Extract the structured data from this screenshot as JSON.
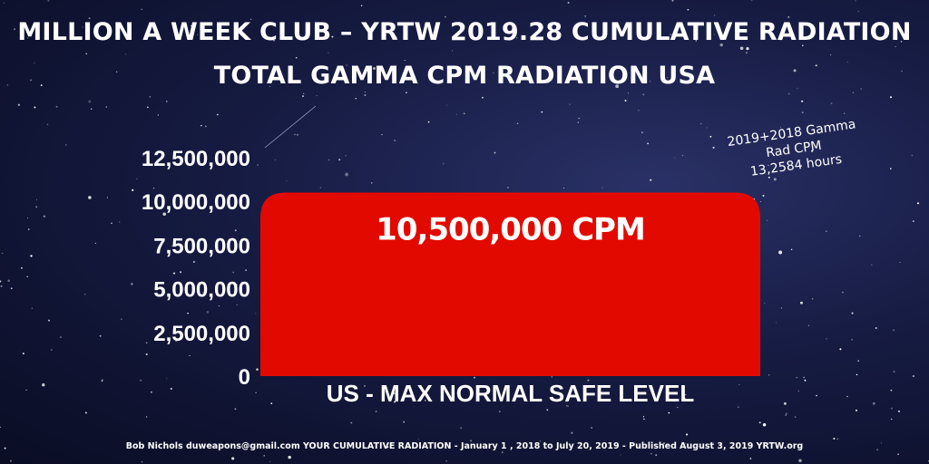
{
  "title_line1": "MILLION A WEEK CLUB – YRTW 2019.28 CUMULATIVE RADIATION",
  "title_line2": "TOTAL GAMMA CPM RADIATION USA",
  "annotation": {
    "line1": "2019+2018 Gamma",
    "line2": "Rad CPM",
    "line3": "13,2584 hours"
  },
  "footer": "Bob Nichols duweapons@gmail.com YOUR CUMULATIVE RADIATION - January 1 , 2018 to July 20, 2019  -  Published August 3, 2019  YRTW.org",
  "colors": {
    "bar": "#e20a00",
    "text": "#ffffff",
    "background": "#161b42"
  },
  "chart_data": {
    "type": "bar",
    "title": "MILLION A WEEK CLUB – YRTW 2019.28 CUMULATIVE RADIATION",
    "subtitle": "TOTAL GAMMA CPM RADIATION USA",
    "categories": [
      "US - MAX NORMAL SAFE LEVEL"
    ],
    "values": [
      10500000
    ],
    "data_labels": [
      "10,500,000 CPM"
    ],
    "ylim": [
      0,
      12500000
    ],
    "yticks": [
      0,
      2500000,
      5000000,
      7500000,
      10000000,
      12500000
    ],
    "ytick_labels": [
      "0",
      "2,500,000",
      "5,000,000",
      "7,500,000",
      "10,000,000",
      "12,500,000"
    ],
    "xlabel": "",
    "ylabel": "",
    "grid": false,
    "legend": "none"
  }
}
